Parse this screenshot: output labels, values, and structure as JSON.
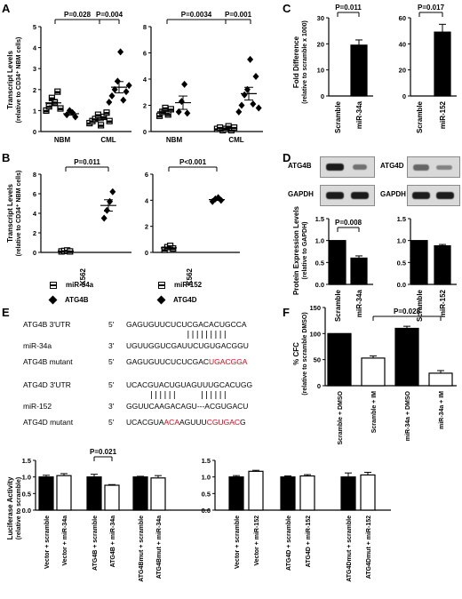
{
  "panels": {
    "A": "A",
    "B": "B",
    "C": "C",
    "D": "D",
    "E": "E",
    "F": "F"
  },
  "panelA": {
    "ylabel_1": "Transcript Levels",
    "ylabel_2": "(relative to CD34⁺ NBM cells)",
    "left": {
      "yticks": [
        "0",
        "1",
        "2",
        "3",
        "4",
        "5"
      ],
      "ylim": [
        0,
        5
      ],
      "groups": [
        "NBM",
        "CML"
      ],
      "p1": "P=0.028",
      "p2": "P=0.004"
    },
    "right": {
      "yticks": [
        "0",
        "2",
        "4",
        "6",
        "8"
      ],
      "ylim": [
        0,
        8
      ],
      "groups": [
        "NBM",
        "CML"
      ],
      "p1": "P=0.0034",
      "p2": "P=0.001"
    }
  },
  "panelB": {
    "ylabel_1": "Transcript Levels",
    "ylabel_2": "(relative to CD34⁺ NBM cells)",
    "left": {
      "yticks": [
        "0",
        "2",
        "4",
        "6",
        "8"
      ],
      "ylim": [
        0,
        8
      ],
      "xlabel": "K562",
      "p": "P=0.011"
    },
    "right": {
      "yticks": [
        "0",
        "2",
        "4",
        "6"
      ],
      "ylim": [
        0,
        6
      ],
      "xlabel": "K562",
      "p": "P<0.001"
    },
    "legend": {
      "mir34a": "miR-34a",
      "atg4b": "ATG4B",
      "mir152": "miR-152",
      "atg4d": "ATG4D"
    }
  },
  "panelC": {
    "ylabel_1": "Fold Difference",
    "ylabel_2": "(relative to scramble x 1000)",
    "left": {
      "yticks": [
        "0",
        "10",
        "20",
        "30"
      ],
      "ylim": [
        0,
        30
      ],
      "categories": [
        "Scramble",
        "miR-34a"
      ],
      "values": [
        0,
        19.5
      ],
      "p": "P=0.011"
    },
    "right": {
      "yticks": [
        "0",
        "20",
        "40",
        "60"
      ],
      "ylim": [
        0,
        60
      ],
      "categories": [
        "Scramble",
        "miR-152"
      ],
      "values": [
        0,
        49
      ],
      "p": "P=0.017"
    }
  },
  "panelD": {
    "blot_left_top": "ATG4B",
    "blot_left_bottom": "GAPDH",
    "blot_right_top": "ATG4D",
    "blot_right_bottom": "GAPDH",
    "ylabel_1": "Protein Expression Levels",
    "ylabel_2": "(relative to GAPDH)",
    "left": {
      "yticks": [
        "0.0",
        "0.5",
        "1.0",
        "1.5"
      ],
      "ylim": [
        0,
        1.5
      ],
      "categories": [
        "Scramble",
        "miR-34a"
      ],
      "values": [
        1.0,
        0.6
      ],
      "p": "P=0.008"
    },
    "right": {
      "yticks": [
        "0.0",
        "0.5",
        "1.0",
        "1.5"
      ],
      "ylim": [
        0,
        1.5
      ],
      "categories": [
        "Scramble",
        "miR-152"
      ],
      "values": [
        1.0,
        0.88
      ]
    }
  },
  "panelE": {
    "seqs": [
      {
        "label": "ATG4B 3'UTR",
        "end": "5'",
        "seq": "GAGUGUUCUCUCGACACUGCCA"
      },
      {
        "label": "miR-34a",
        "end": "3'",
        "seq": "UGUUGGUCGAUUCUGUGACGGU"
      },
      {
        "label": "ATG4B mutant",
        "end": "5'",
        "seq_a": "GAGUGUUCUCUCGAC",
        "seq_b": "UGACGGA"
      },
      {
        "label": "ATG4D 3'UTR",
        "end": "5'",
        "seq": "UCACGUACUGUAGUUUGCACUGG"
      },
      {
        "label": "miR-152",
        "end": "3'",
        "seq": "GGUUCAAGACAGU---ACGUGACU"
      },
      {
        "label": "ATG4D mutant",
        "end": "5'",
        "seq_a": "UCACGUA",
        "seq_b": "ACA",
        "seq_c": "AGUUU",
        "seq_d": "CGUGAC",
        "seq_e": "G"
      }
    ],
    "ylabel_1": "Luciferase Activity",
    "ylabel_2": "(relative to scramble)",
    "left": {
      "yticks": [
        "0.0",
        "0.5",
        "1.0",
        "1.5"
      ],
      "ylim": [
        0,
        1.5
      ],
      "categories": [
        "Vector + scramble",
        "Vector + miR-34a",
        "ATG4B + scramble",
        "ATG4B + miR-34a",
        "ATG4Bmut + scramble",
        "ATG4Bmut + miR-34a"
      ],
      "values": [
        1.0,
        1.04,
        1.0,
        0.75,
        1.0,
        0.97
      ],
      "p": "P=0.021"
    },
    "right": {
      "yticks": [
        "0.0",
        "0.5",
        "1.0",
        "1.5"
      ],
      "ylim": [
        0,
        1.5
      ],
      "categories": [
        "Vector + scramble",
        "Vector + miR-152",
        "ATG4D + scramble",
        "ATG4D + miR-152",
        "ATG4Dmut + scramble",
        "ATG4Dmut + miR-152"
      ],
      "values": [
        1.0,
        1.17,
        1.0,
        1.03,
        1.0,
        1.06
      ]
    }
  },
  "panelF": {
    "ylabel_1": "% CFC",
    "ylabel_2": "(relative to scramble DMSO)",
    "yticks": [
      "0",
      "50",
      "100",
      "150"
    ],
    "ylim": [
      0,
      150
    ],
    "categories": [
      "Scramble + DMSO",
      "Scramble + IM",
      "miR-34a + DMSO",
      "miR-34a + IM"
    ],
    "values": [
      100,
      53,
      110,
      24
    ],
    "p": "P=0.028"
  },
  "chart_data": [
    {
      "type": "scatter",
      "panel": "A-left",
      "ylabel": "Transcript Levels (relative to CD34⁺ NBM cells)",
      "ylim": [
        0,
        5
      ],
      "groups": [
        "NBM",
        "CML"
      ],
      "series": [
        {
          "name": "miR-34a",
          "marker": "square",
          "x_group": [
            "NBM",
            "NBM",
            "NBM",
            "NBM",
            "NBM",
            "NBM",
            "CML",
            "CML",
            "CML",
            "CML",
            "CML",
            "CML",
            "CML",
            "CML"
          ],
          "values": [
            1.0,
            1.2,
            1.6,
            1.4,
            1.9,
            1.1,
            0.4,
            0.5,
            0.6,
            0.8,
            0.3,
            0.7,
            0.9,
            0.5
          ]
        },
        {
          "name": "ATG4B",
          "marker": "diamond",
          "x_group": [
            "NBM",
            "NBM",
            "NBM",
            "NBM",
            "CML",
            "CML",
            "CML",
            "CML",
            "CML",
            "CML",
            "CML",
            "CML"
          ],
          "values": [
            0.8,
            1.0,
            0.9,
            0.7,
            1.4,
            1.7,
            2.0,
            2.4,
            3.8,
            1.5,
            1.9,
            2.2
          ]
        }
      ]
    },
    {
      "type": "scatter",
      "panel": "A-right",
      "ylim": [
        0,
        8
      ],
      "groups": [
        "NBM",
        "CML"
      ],
      "series": [
        {
          "name": "miR-152",
          "marker": "square",
          "x_group": [
            "NBM",
            "NBM",
            "NBM",
            "NBM",
            "NBM",
            "CML",
            "CML",
            "CML",
            "CML",
            "CML",
            "CML",
            "CML"
          ],
          "values": [
            1.2,
            1.5,
            1.8,
            1.3,
            1.7,
            0.2,
            0.3,
            0.1,
            0.2,
            0.4,
            0.1,
            0.3
          ]
        },
        {
          "name": "ATG4D",
          "marker": "diamond",
          "x_group": [
            "NBM",
            "NBM",
            "NBM",
            "NBM",
            "CML",
            "CML",
            "CML",
            "CML",
            "CML",
            "CML",
            "CML",
            "CML"
          ],
          "values": [
            1.5,
            2.3,
            3.6,
            1.4,
            1.5,
            2.0,
            2.8,
            3.2,
            5.5,
            2.1,
            4.2,
            1.8
          ]
        }
      ]
    },
    {
      "type": "scatter",
      "panel": "B-left",
      "ylim": [
        0,
        8
      ],
      "xlabel": "K562",
      "series": [
        {
          "name": "miR-34a",
          "marker": "square",
          "values": [
            0.1,
            0.15,
            0.2,
            0.1
          ]
        },
        {
          "name": "ATG4B",
          "marker": "diamond",
          "values": [
            3.5,
            4.3,
            5.2,
            6.2
          ]
        }
      ]
    },
    {
      "type": "scatter",
      "panel": "B-right",
      "ylim": [
        0,
        6
      ],
      "xlabel": "K562",
      "series": [
        {
          "name": "miR-152",
          "marker": "square",
          "values": [
            0.2,
            0.4,
            0.5,
            0.3
          ]
        },
        {
          "name": "ATG4D",
          "marker": "diamond",
          "values": [
            3.9,
            4.1,
            4.2,
            4.0
          ]
        }
      ]
    },
    {
      "type": "bar",
      "panel": "C-left",
      "categories": [
        "Scramble",
        "miR-34a"
      ],
      "values": [
        0,
        19.5
      ],
      "errors": [
        0,
        2
      ],
      "ylim": [
        0,
        30
      ]
    },
    {
      "type": "bar",
      "panel": "C-right",
      "categories": [
        "Scramble",
        "miR-152"
      ],
      "values": [
        0,
        49
      ],
      "errors": [
        0,
        6
      ],
      "ylim": [
        0,
        60
      ]
    },
    {
      "type": "bar",
      "panel": "D-left",
      "categories": [
        "Scramble",
        "miR-34a"
      ],
      "values": [
        1.0,
        0.6
      ],
      "errors": [
        0,
        0.05
      ],
      "ylim": [
        0,
        1.5
      ]
    },
    {
      "type": "bar",
      "panel": "D-right",
      "categories": [
        "Scramble",
        "miR-152"
      ],
      "values": [
        1.0,
        0.88
      ],
      "errors": [
        0,
        0.03
      ],
      "ylim": [
        0,
        1.5
      ]
    },
    {
      "type": "bar",
      "panel": "E-left",
      "categories": [
        "Vector + scramble",
        "Vector + miR-34a",
        "ATG4B + scramble",
        "ATG4B + miR-34a",
        "ATG4Bmut + scramble",
        "ATG4Bmut + miR-34a"
      ],
      "values": [
        1.0,
        1.04,
        1.0,
        0.75,
        1.0,
        0.97
      ],
      "errors": [
        0.05,
        0.06,
        0.08,
        0.02,
        0.02,
        0.07
      ],
      "ylim": [
        0,
        1.5
      ]
    },
    {
      "type": "bar",
      "panel": "E-right",
      "categories": [
        "Vector + scramble",
        "Vector + miR-152",
        "ATG4D + scramble",
        "ATG4D + miR-152",
        "ATG4Dmut + scramble",
        "ATG4Dmut + miR-152"
      ],
      "values": [
        1.0,
        1.17,
        1.0,
        1.03,
        1.0,
        1.06
      ],
      "errors": [
        0.04,
        0.03,
        0.03,
        0.04,
        0.12,
        0.08
      ],
      "ylim": [
        0,
        1.5
      ]
    },
    {
      "type": "bar",
      "panel": "F",
      "categories": [
        "Scramble + DMSO",
        "Scramble + IM",
        "miR-34a + DMSO",
        "miR-34a + IM"
      ],
      "values": [
        100,
        53,
        110,
        24
      ],
      "errors": [
        0,
        4,
        4,
        5
      ],
      "ylim": [
        0,
        150
      ]
    }
  ]
}
